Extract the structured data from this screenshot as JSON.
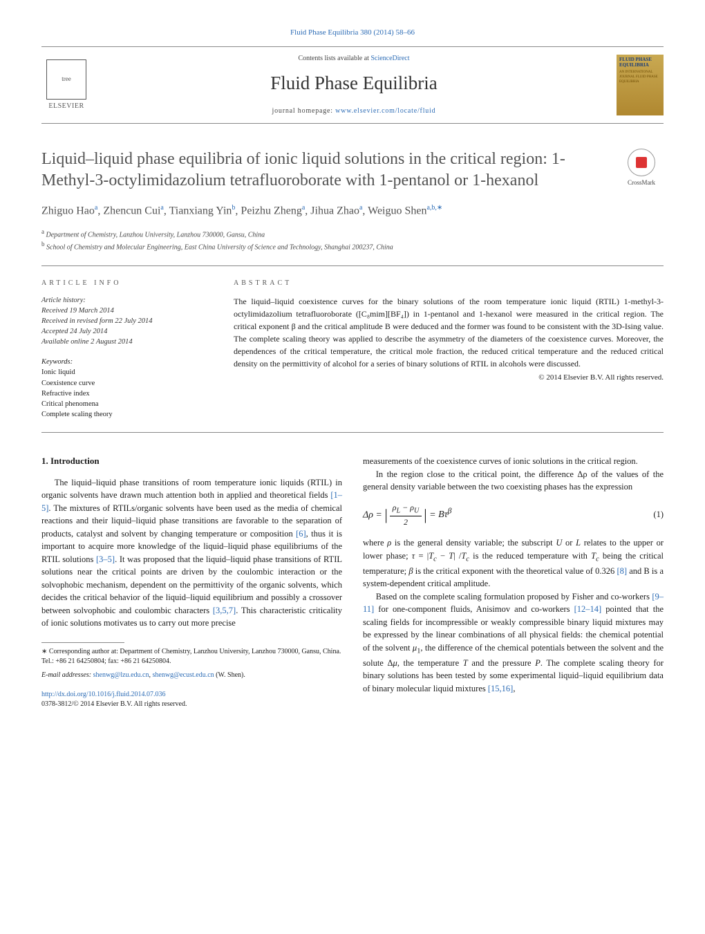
{
  "header": {
    "journal_ref": "Fluid Phase Equilibria 380 (2014) 58–66",
    "contents_line_pre": "Contents lists available at ",
    "contents_link": "ScienceDirect",
    "journal_title": "Fluid Phase Equilibria",
    "homepage_pre": "journal homepage: ",
    "homepage_link": "www.elsevier.com/locate/fluid",
    "publisher": "ELSEVIER",
    "cover_title": "FLUID PHASE EQUILIBRIA",
    "cover_sub": "AN INTERNATIONAL JOURNAL FLUID PHASE EQUILIBRIA"
  },
  "crossmark": "CrossMark",
  "title": "Liquid–liquid phase equilibria of ionic liquid solutions in the critical region: 1-Methyl-3-octylimidazolium tetrafluoroborate with 1-pentanol or 1-hexanol",
  "authors_html": "Zhiguo Hao<sup>a</sup>, Zhencun Cui<sup>a</sup>, Tianxiang Yin<sup>b</sup>, Peizhu Zheng<sup>a</sup>, Jihua Zhao<sup>a</sup>, Weiguo Shen<sup>a,b,∗</sup>",
  "affiliations": {
    "a": "Department of Chemistry, Lanzhou University, Lanzhou 730000, Gansu, China",
    "b": "School of Chemistry and Molecular Engineering, East China University of Science and Technology, Shanghai 200237, China"
  },
  "article_info": {
    "label": "ARTICLE INFO",
    "history_label": "Article history:",
    "received": "Received 19 March 2014",
    "revised": "Received in revised form 22 July 2014",
    "accepted": "Accepted 24 July 2014",
    "online": "Available online 2 August 2014",
    "keywords_label": "Keywords:",
    "keywords": [
      "Ionic liquid",
      "Coexistence curve",
      "Refractive index",
      "Critical phenomena",
      "Complete scaling theory"
    ]
  },
  "abstract": {
    "label": "ABSTRACT",
    "text": "The liquid–liquid coexistence curves for the binary solutions of the room temperature ionic liquid (RTIL) 1-methyl-3-octylimidazolium tetrafluoroborate ([C₈mim][BF₄]) in 1-pentanol and 1-hexanol were measured in the critical region. The critical exponent β and the critical amplitude B were deduced and the former was found to be consistent with the 3D-Ising value. The complete scaling theory was applied to describe the asymmetry of the diameters of the coexistence curves. Moreover, the dependences of the critical temperature, the critical mole fraction, the reduced critical temperature and the reduced critical density on the permittivity of alcohol for a series of binary solutions of RTIL in alcohols were discussed.",
    "copyright": "© 2014 Elsevier B.V. All rights reserved."
  },
  "section1": {
    "heading": "1. Introduction",
    "p1_pre": "The liquid–liquid phase transitions of room temperature ionic liquids (RTIL) in organic solvents have drawn much attention both in applied and theoretical fields ",
    "p1_ref1": "[1–5]",
    "p1_mid1": ". The mixtures of RTILs/organic solvents have been used as the media of chemical reactions and their liquid–liquid phase transitions are favorable to the separation of products, catalyst and solvent by changing temperature or composition ",
    "p1_ref2": "[6]",
    "p1_mid2": ", thus it is important to acquire more knowledge of the liquid–liquid phase equilibriums of the RTIL solutions ",
    "p1_ref3": "[3–5]",
    "p1_mid3": ". It was proposed that the liquid–liquid phase transitions of RTIL solutions near the critical points are driven by the coulombic interaction or the solvophobic mechanism, dependent on the permittivity of the organic solvents, which decides the critical behavior of the liquid–liquid equilibrium and possibly a crossover between solvophobic and coulombic characters ",
    "p1_ref4": "[3,5,7]",
    "p1_end": ". This characteristic criticality of ionic solutions motivates us to carry out more precise",
    "p1b": "measurements of the coexistence curves of ionic solutions in the critical region.",
    "p2": "In the region close to the critical point, the difference Δρ of the values of the general density variable between the two coexisting phases has the expression",
    "eq1_lhs": "Δρ =",
    "eq1_num": "ρ_L − ρ_U",
    "eq1_den": "2",
    "eq1_rhs": "= Bτ^β",
    "eq1_num_label": "(1)",
    "p3_pre": "where ρ is the general density variable; the subscript U or L relates to the upper or lower phase; τ = |T_c − T| /T_c is the reduced temperature with T_c being the critical temperature; β is the critical exponent with the theoretical value of 0.326 ",
    "p3_ref1": "[8]",
    "p3_end": " and B is a system-dependent critical amplitude.",
    "p4_pre": "Based on the complete scaling formulation proposed by Fisher and co-workers ",
    "p4_ref1": "[9–11]",
    "p4_mid1": " for one-component fluids, Anisimov and co-workers ",
    "p4_ref2": "[12–14]",
    "p4_mid2": " pointed that the scaling fields for incompressible or weakly compressible binary liquid mixtures may be expressed by the linear combinations of all physical fields: the chemical potential of the solvent μ₁, the difference of the chemical potentials between the solvent and the solute Δμ, the temperature T and the pressure P. The complete scaling theory for binary solutions has been tested by some experimental liquid–liquid equilibrium data of binary molecular liquid mixtures ",
    "p4_ref3": "[15,16]",
    "p4_end": ","
  },
  "footnote": {
    "corr_label": "∗ Corresponding author at: Department of Chemistry, Lanzhou University, Lanzhou 730000, Gansu, China. Tel.: +86 21 64250804; fax: +86 21 64250804.",
    "email_label": "E-mail addresses: ",
    "email1": "shenwg@lzu.edu.cn",
    "email_sep": ", ",
    "email2": "shenwg@ecust.edu.cn",
    "email_person": " (W. Shen)."
  },
  "doi": {
    "link": "http://dx.doi.org/10.1016/j.fluid.2014.07.036",
    "issn_line": "0378-3812/© 2014 Elsevier B.V. All rights reserved."
  },
  "colors": {
    "link": "#2b6bb5",
    "text": "#1a1a1a",
    "muted": "#525252",
    "rule": "#888",
    "cover_grad_top": "#c9a952",
    "cover_grad_bot": "#b08830",
    "crossmark_red": "#d33"
  }
}
